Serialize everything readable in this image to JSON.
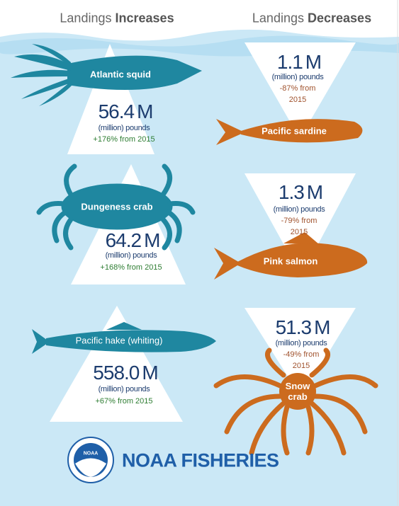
{
  "headers": [
    {
      "label": "Landings",
      "emphasis": "Increases"
    },
    {
      "label": "Landings",
      "emphasis": "Decreases"
    }
  ],
  "increases": [
    {
      "name": "Atlantic squid",
      "amount": "56.4",
      "unit": "M",
      "measure": "(million) pounds",
      "change": "+176% from 2015"
    },
    {
      "name": "Dungeness crab",
      "amount": "64.2",
      "unit": "M",
      "measure": "(million) pounds",
      "change": "+168% from 2015"
    },
    {
      "name": "Pacific hake",
      "name_note": "(whiting)",
      "amount": "558.0",
      "unit": "M",
      "measure": "(million) pounds",
      "change": "+67% from 2015"
    }
  ],
  "decreases": [
    {
      "name": "Pacific sardine",
      "amount": "1.1",
      "unit": "M",
      "measure": "(million) pounds",
      "change": "-87% from 2015"
    },
    {
      "name": "Pink salmon",
      "amount": "1.3",
      "unit": "M",
      "measure": "(million) pounds",
      "change": "-79% from 2015"
    },
    {
      "name": "Snow crab",
      "amount": "51.3",
      "unit": "M",
      "measure": "(million) pounds",
      "change": "-49% from 2015"
    }
  ],
  "logo": {
    "emblem": "NOAA",
    "brand": "NOAA FISHERIES"
  }
}
